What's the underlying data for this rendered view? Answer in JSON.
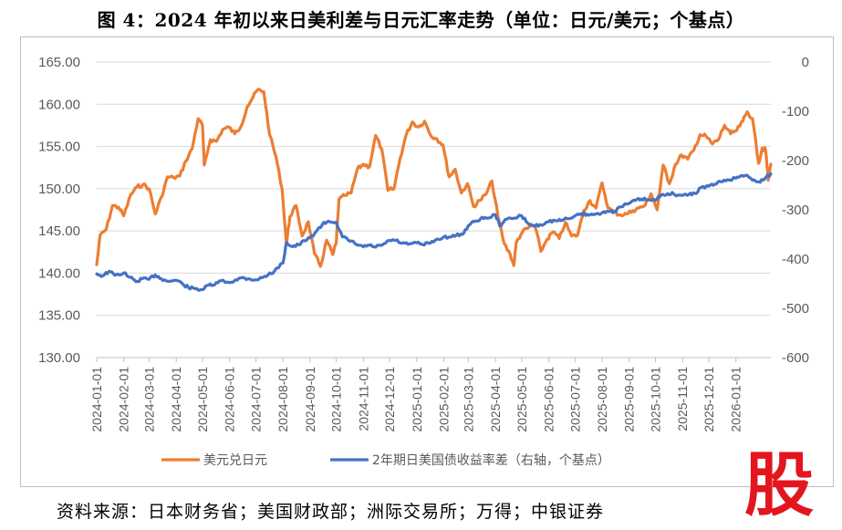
{
  "title": "图 4：2024 年初以来日美利差与日元汇率走势（单位：日元/美元；个基点）",
  "source": "资料来源：日本财务省；美国财政部；洲际交易所；万得；中银证券",
  "logo_text": "股",
  "colors": {
    "usdjpy": "#ED7D31",
    "spread": "#4472C4",
    "grid": "#d9d9d9",
    "axis_text": "#595959"
  },
  "chart_data": {
    "type": "line",
    "title": "",
    "xlabel": "",
    "ylabel_left": "",
    "ylabel_right": "",
    "x_tick_labels": [
      "2024-01-01",
      "2024-02-01",
      "2024-03-01",
      "2024-04-01",
      "2024-05-01",
      "2024-06-01",
      "2024-07-01",
      "2024-08-01",
      "2024-09-01",
      "2024-10-01",
      "2024-11-01",
      "2024-12-01",
      "2025-01-01",
      "2025-02-01",
      "2025-03-01",
      "2025-04-01",
      "2025-05-01",
      "2025-06-01",
      "2025-07-01",
      "2025-08-01",
      "2025-09-01",
      "2025-10-01",
      "2025-11-01",
      "2025-12-01",
      "2026-01-01"
    ],
    "y_left": {
      "min": 130,
      "max": 165,
      "ticks": [
        130,
        135,
        140,
        145,
        150,
        155,
        160,
        165
      ],
      "tick_labels": [
        "130.00",
        "135.00",
        "140.00",
        "145.00",
        "150.00",
        "155.00",
        "160.00",
        "165.00"
      ]
    },
    "y_right": {
      "min": -600,
      "max": 0,
      "ticks": [
        -600,
        -500,
        -400,
        -300,
        -200,
        -100,
        0
      ],
      "tick_labels": [
        "-600",
        "-500",
        "-400",
        "-300",
        "-200",
        "-100",
        "0"
      ]
    },
    "grid": true,
    "legend_position": "bottom",
    "x_end": "2026-02-10",
    "series": [
      {
        "name": "美元兑日元",
        "axis": "left",
        "color": "#ED7D31",
        "points": [
          [
            "2024-01-01",
            141.0
          ],
          [
            "2024-01-05",
            144.5
          ],
          [
            "2024-01-12",
            145.2
          ],
          [
            "2024-01-19",
            148.0
          ],
          [
            "2024-01-26",
            147.8
          ],
          [
            "2024-02-01",
            146.8
          ],
          [
            "2024-02-09",
            149.3
          ],
          [
            "2024-02-16",
            150.2
          ],
          [
            "2024-02-23",
            150.5
          ],
          [
            "2024-03-01",
            150.0
          ],
          [
            "2024-03-08",
            147.0
          ],
          [
            "2024-03-15",
            149.0
          ],
          [
            "2024-03-22",
            151.4
          ],
          [
            "2024-03-29",
            151.3
          ],
          [
            "2024-04-05",
            151.5
          ],
          [
            "2024-04-12",
            153.3
          ],
          [
            "2024-04-19",
            154.7
          ],
          [
            "2024-04-26",
            158.3
          ],
          [
            "2024-05-01",
            157.5
          ],
          [
            "2024-05-03",
            152.8
          ],
          [
            "2024-05-10",
            155.8
          ],
          [
            "2024-05-17",
            155.6
          ],
          [
            "2024-05-24",
            157.0
          ],
          [
            "2024-05-31",
            157.3
          ],
          [
            "2024-06-07",
            156.5
          ],
          [
            "2024-06-14",
            157.4
          ],
          [
            "2024-06-21",
            159.7
          ],
          [
            "2024-06-28",
            160.9
          ],
          [
            "2024-07-03",
            161.7
          ],
          [
            "2024-07-10",
            161.5
          ],
          [
            "2024-07-17",
            156.3
          ],
          [
            "2024-07-24",
            153.8
          ],
          [
            "2024-07-31",
            150.0
          ],
          [
            "2024-08-05",
            143.5
          ],
          [
            "2024-08-09",
            146.7
          ],
          [
            "2024-08-16",
            148.0
          ],
          [
            "2024-08-23",
            144.4
          ],
          [
            "2024-08-30",
            146.1
          ],
          [
            "2024-09-06",
            142.3
          ],
          [
            "2024-09-13",
            140.8
          ],
          [
            "2024-09-20",
            143.9
          ],
          [
            "2024-09-27",
            142.2
          ],
          [
            "2024-10-01",
            143.6
          ],
          [
            "2024-10-04",
            148.7
          ],
          [
            "2024-10-11",
            149.2
          ],
          [
            "2024-10-18",
            149.5
          ],
          [
            "2024-10-25",
            152.3
          ],
          [
            "2024-11-01",
            152.9
          ],
          [
            "2024-11-08",
            152.6
          ],
          [
            "2024-11-15",
            156.3
          ],
          [
            "2024-11-22",
            154.7
          ],
          [
            "2024-11-29",
            149.8
          ],
          [
            "2024-12-06",
            150.0
          ],
          [
            "2024-12-13",
            153.6
          ],
          [
            "2024-12-20",
            156.4
          ],
          [
            "2024-12-27",
            157.9
          ],
          [
            "2025-01-03",
            157.3
          ],
          [
            "2025-01-10",
            158.0
          ],
          [
            "2025-01-17",
            156.3
          ],
          [
            "2025-01-24",
            155.9
          ],
          [
            "2025-01-31",
            155.2
          ],
          [
            "2025-02-07",
            151.4
          ],
          [
            "2025-02-14",
            152.3
          ],
          [
            "2025-02-21",
            149.5
          ],
          [
            "2025-02-28",
            150.6
          ],
          [
            "2025-03-07",
            147.9
          ],
          [
            "2025-03-14",
            148.6
          ],
          [
            "2025-03-21",
            149.3
          ],
          [
            "2025-03-28",
            150.9
          ],
          [
            "2025-04-04",
            146.7
          ],
          [
            "2025-04-11",
            143.5
          ],
          [
            "2025-04-18",
            142.2
          ],
          [
            "2025-04-22",
            140.9
          ],
          [
            "2025-04-25",
            143.7
          ],
          [
            "2025-05-02",
            144.9
          ],
          [
            "2025-05-09",
            145.4
          ],
          [
            "2025-05-16",
            145.7
          ],
          [
            "2025-05-23",
            142.6
          ],
          [
            "2025-05-30",
            144.0
          ],
          [
            "2025-06-06",
            144.9
          ],
          [
            "2025-06-13",
            144.1
          ],
          [
            "2025-06-20",
            146.0
          ],
          [
            "2025-06-27",
            144.4
          ],
          [
            "2025-07-04",
            144.5
          ],
          [
            "2025-07-11",
            147.4
          ],
          [
            "2025-07-18",
            148.6
          ],
          [
            "2025-07-25",
            147.7
          ],
          [
            "2025-08-01",
            150.7
          ],
          [
            "2025-08-08",
            147.7
          ],
          [
            "2025-08-15",
            147.2
          ],
          [
            "2025-08-22",
            146.9
          ],
          [
            "2025-08-29",
            147.0
          ],
          [
            "2025-09-05",
            147.4
          ],
          [
            "2025-09-12",
            147.7
          ],
          [
            "2025-09-19",
            148.0
          ],
          [
            "2025-09-26",
            149.4
          ],
          [
            "2025-10-03",
            147.5
          ],
          [
            "2025-10-10",
            152.8
          ],
          [
            "2025-10-17",
            150.6
          ],
          [
            "2025-10-24",
            152.9
          ],
          [
            "2025-10-31",
            154.0
          ],
          [
            "2025-11-07",
            153.5
          ],
          [
            "2025-11-14",
            154.6
          ],
          [
            "2025-11-21",
            156.4
          ],
          [
            "2025-11-28",
            156.2
          ],
          [
            "2025-12-05",
            155.3
          ],
          [
            "2025-12-12",
            155.8
          ],
          [
            "2025-12-19",
            157.5
          ],
          [
            "2025-12-26",
            156.5
          ],
          [
            "2026-01-02",
            156.9
          ],
          [
            "2026-01-09",
            158.0
          ],
          [
            "2026-01-14",
            159.1
          ],
          [
            "2026-01-20",
            158.3
          ],
          [
            "2026-01-27",
            153.0
          ],
          [
            "2026-01-31",
            154.8
          ],
          [
            "2026-02-04",
            154.6
          ],
          [
            "2026-02-07",
            151.0
          ],
          [
            "2026-02-10",
            152.9
          ]
        ]
      },
      {
        "name": "2年期日美国债收益率差（右轴，个基点）",
        "axis": "right",
        "color": "#4472C4",
        "points": [
          [
            "2024-01-01",
            -430
          ],
          [
            "2024-01-08",
            -434
          ],
          [
            "2024-01-15",
            -425
          ],
          [
            "2024-01-22",
            -433
          ],
          [
            "2024-02-01",
            -428
          ],
          [
            "2024-02-08",
            -437
          ],
          [
            "2024-02-15",
            -446
          ],
          [
            "2024-02-22",
            -440
          ],
          [
            "2024-03-01",
            -441
          ],
          [
            "2024-03-08",
            -432
          ],
          [
            "2024-03-15",
            -440
          ],
          [
            "2024-03-22",
            -445
          ],
          [
            "2024-04-01",
            -443
          ],
          [
            "2024-04-08",
            -450
          ],
          [
            "2024-04-15",
            -458
          ],
          [
            "2024-04-22",
            -460
          ],
          [
            "2024-05-01",
            -462
          ],
          [
            "2024-05-08",
            -453
          ],
          [
            "2024-05-15",
            -452
          ],
          [
            "2024-05-22",
            -444
          ],
          [
            "2024-06-01",
            -448
          ],
          [
            "2024-06-08",
            -442
          ],
          [
            "2024-06-15",
            -438
          ],
          [
            "2024-06-22",
            -440
          ],
          [
            "2024-07-01",
            -442
          ],
          [
            "2024-07-08",
            -438
          ],
          [
            "2024-07-15",
            -432
          ],
          [
            "2024-07-22",
            -425
          ],
          [
            "2024-08-01",
            -408
          ],
          [
            "2024-08-05",
            -366
          ],
          [
            "2024-08-12",
            -375
          ],
          [
            "2024-08-19",
            -371
          ],
          [
            "2024-08-26",
            -363
          ],
          [
            "2024-09-01",
            -357
          ],
          [
            "2024-09-08",
            -344
          ],
          [
            "2024-09-15",
            -330
          ],
          [
            "2024-09-22",
            -323
          ],
          [
            "2024-10-01",
            -325
          ],
          [
            "2024-10-08",
            -355
          ],
          [
            "2024-10-15",
            -362
          ],
          [
            "2024-10-22",
            -368
          ],
          [
            "2024-11-01",
            -375
          ],
          [
            "2024-11-08",
            -372
          ],
          [
            "2024-11-15",
            -376
          ],
          [
            "2024-11-22",
            -372
          ],
          [
            "2024-12-01",
            -362
          ],
          [
            "2024-12-08",
            -362
          ],
          [
            "2024-12-15",
            -368
          ],
          [
            "2024-12-22",
            -370
          ],
          [
            "2025-01-01",
            -367
          ],
          [
            "2025-01-08",
            -371
          ],
          [
            "2025-01-15",
            -368
          ],
          [
            "2025-01-22",
            -362
          ],
          [
            "2025-02-01",
            -355
          ],
          [
            "2025-02-08",
            -355
          ],
          [
            "2025-02-15",
            -352
          ],
          [
            "2025-02-22",
            -350
          ],
          [
            "2025-03-01",
            -332
          ],
          [
            "2025-03-08",
            -324
          ],
          [
            "2025-03-15",
            -318
          ],
          [
            "2025-03-22",
            -317
          ],
          [
            "2025-04-01",
            -310
          ],
          [
            "2025-04-06",
            -333
          ],
          [
            "2025-04-12",
            -320
          ],
          [
            "2025-04-20",
            -318
          ],
          [
            "2025-05-01",
            -312
          ],
          [
            "2025-05-08",
            -327
          ],
          [
            "2025-05-15",
            -333
          ],
          [
            "2025-05-22",
            -330
          ],
          [
            "2025-06-01",
            -324
          ],
          [
            "2025-06-08",
            -322
          ],
          [
            "2025-06-15",
            -322
          ],
          [
            "2025-06-22",
            -318
          ],
          [
            "2025-07-01",
            -312
          ],
          [
            "2025-07-08",
            -308
          ],
          [
            "2025-07-15",
            -309
          ],
          [
            "2025-07-22",
            -310
          ],
          [
            "2025-08-01",
            -306
          ],
          [
            "2025-08-08",
            -303
          ],
          [
            "2025-08-15",
            -303
          ],
          [
            "2025-08-22",
            -294
          ],
          [
            "2025-09-01",
            -287
          ],
          [
            "2025-09-08",
            -281
          ],
          [
            "2025-09-15",
            -278
          ],
          [
            "2025-09-22",
            -280
          ],
          [
            "2025-10-01",
            -281
          ],
          [
            "2025-10-08",
            -269
          ],
          [
            "2025-10-15",
            -267
          ],
          [
            "2025-10-22",
            -268
          ],
          [
            "2025-11-01",
            -271
          ],
          [
            "2025-11-08",
            -269
          ],
          [
            "2025-11-15",
            -267
          ],
          [
            "2025-11-22",
            -255
          ],
          [
            "2025-12-01",
            -252
          ],
          [
            "2025-12-08",
            -248
          ],
          [
            "2025-12-15",
            -243
          ],
          [
            "2025-12-22",
            -239
          ],
          [
            "2026-01-01",
            -236
          ],
          [
            "2026-01-08",
            -230
          ],
          [
            "2026-01-14",
            -230
          ],
          [
            "2026-01-20",
            -240
          ],
          [
            "2026-01-27",
            -243
          ],
          [
            "2026-02-03",
            -237
          ],
          [
            "2026-02-10",
            -227
          ]
        ]
      }
    ]
  }
}
